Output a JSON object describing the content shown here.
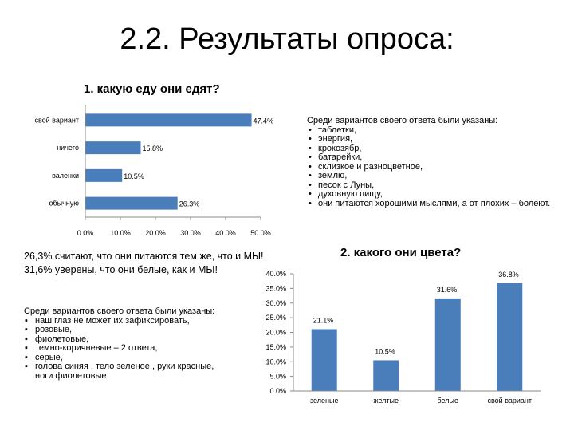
{
  "slide_title": "2.2. Результаты опроса:",
  "notes_food": {
    "heading": "Среди вариантов своего ответа были указаны:",
    "items": [
      "таблетки,",
      "энергия,",
      "крокозябр,",
      "батарейки,",
      "склизкое и разноцветное,",
      "землю,",
      "песок с Луны,",
      "духовную пищу,",
      "они питаются хорошими мыслями, а от плохих – болеют."
    ]
  },
  "stats": {
    "line1": "26,3% считают, что они питаются тем же, что и МЫ!",
    "line2": "31,6% уверены, что они белые, как и МЫ!"
  },
  "notes_color": {
    "heading": "Среди вариантов своего ответа были указаны:",
    "items": [
      "наш глаз не может их зафиксировать,",
      "розовые,",
      "фиолетовые,",
      "темно-коричневые – 2 ответа,",
      "серые,",
      "голова синяя , тело зеленое , руки красные, ноги фиолетовые."
    ]
  },
  "chart_data": [
    {
      "type": "bar",
      "orientation": "horizontal",
      "title": "1. какую еду они едят?",
      "categories": [
        "свой вариант",
        "ничего",
        "валенки",
        "обычную"
      ],
      "values": [
        47.4,
        15.8,
        10.5,
        26.3
      ],
      "value_labels": [
        "47.4%",
        "15.8%",
        "10.5%",
        "26.3%"
      ],
      "xlim": [
        0,
        50
      ],
      "ticks": [
        "0.0%",
        "10.0%",
        "20.0%",
        "30.0%",
        "40.0%",
        "50.0%"
      ],
      "color": "#4a7ebb",
      "grid": false
    },
    {
      "type": "bar",
      "orientation": "vertical",
      "title": "2. какого они цвета?",
      "categories": [
        "зеленые",
        "желтые",
        "белые",
        "свой вариант"
      ],
      "values": [
        21.1,
        10.5,
        31.6,
        36.8
      ],
      "value_labels": [
        "21.1%",
        "10.5%",
        "31.6%",
        "36.8%"
      ],
      "ylim": [
        0,
        40
      ],
      "ticks": [
        "0.0%",
        "5.0%",
        "10.0%",
        "15.0%",
        "20.0%",
        "25.0%",
        "30.0%",
        "35.0%",
        "40.0%"
      ],
      "color": "#4a7ebb",
      "grid": false
    }
  ]
}
